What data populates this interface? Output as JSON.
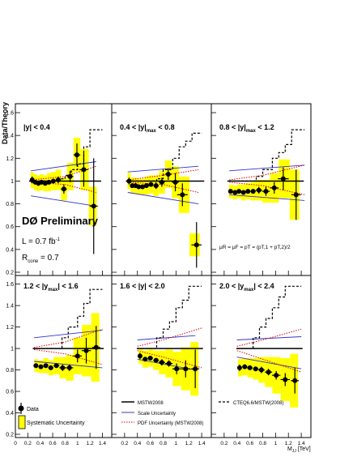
{
  "figure": {
    "ylabel": "Data/Theory",
    "xlabel": "M",
    "xlabel_sub": "JJ",
    "xlabel_unit": " [TeV]",
    "experiment": "DØ Preliminary",
    "lumi_a": "L = 0.7 fb",
    "lumi_b": "-1",
    "rcone_a": "R",
    "rcone_b": "cone",
    "rcone_c": " = 0.7",
    "scale_text": "μR = μF = pT = (pT,1 + pT,2)/2"
  },
  "colors": {
    "syst": "#ffff00",
    "data": "#000000",
    "mstw": "#000000",
    "scale": "#3333cc",
    "pdf": "#dd0000",
    "cteq": "#000000"
  },
  "legend": {
    "data": "Data",
    "syst": "Systematic Uncertainty",
    "mstw": "MSTW2008",
    "scale": "Scale  Uncertainty",
    "pdf": "PDF Uncertainty (MSTW2008)",
    "cteq": "CTEQ6.6/MSTW(2008)"
  },
  "chart_data": {
    "type": "scatter",
    "xlim": [
      0,
      1.55
    ],
    "ylim": [
      0.2,
      1.65
    ],
    "yticks": [
      "0.2",
      "0.4",
      "0.6",
      "0.8",
      "1",
      "1.2",
      "1.4",
      "1.6"
    ],
    "xticks_first": [
      "0",
      "0.2",
      "0.4",
      "0.6",
      "0.8",
      "1",
      "1.2",
      "1.4"
    ],
    "xticks_other": [
      "0.2",
      "0.4",
      "0.6",
      "0.8",
      "1",
      "1.2",
      "1.4"
    ],
    "panels": [
      {
        "label_pre": "|y| < 0.4",
        "label_sub": "",
        "label_post": "",
        "data": [
          {
            "x": 0.27,
            "y": 1.01,
            "err": 0.03,
            "sys": 0.07
          },
          {
            "x": 0.32,
            "y": 0.99,
            "err": 0.02,
            "sys": 0.07
          },
          {
            "x": 0.37,
            "y": 0.98,
            "err": 0.02,
            "sys": 0.07
          },
          {
            "x": 0.42,
            "y": 0.99,
            "err": 0.02,
            "sys": 0.07
          },
          {
            "x": 0.48,
            "y": 0.98,
            "err": 0.02,
            "sys": 0.07
          },
          {
            "x": 0.54,
            "y": 0.99,
            "err": 0.02,
            "sys": 0.08
          },
          {
            "x": 0.61,
            "y": 1.0,
            "err": 0.02,
            "sys": 0.08
          },
          {
            "x": 0.69,
            "y": 1.01,
            "err": 0.03,
            "sys": 0.09
          },
          {
            "x": 0.78,
            "y": 0.93,
            "err": 0.04,
            "sys": 0.1
          },
          {
            "x": 0.88,
            "y": 1.04,
            "err": 0.05,
            "sys": 0.12
          },
          {
            "x": 0.99,
            "y": 1.23,
            "err": 0.1,
            "sys": 0.15
          },
          {
            "x": 1.1,
            "y": 1.1,
            "err": 0.15,
            "sys": 0.18
          },
          {
            "x": 1.26,
            "y": 0.78,
            "err": 0.42,
            "sys": 0.17
          }
        ],
        "cteq": [
          [
            0.25,
            1.0
          ],
          [
            0.7,
            1.02
          ],
          [
            0.8,
            1.05
          ],
          [
            0.9,
            1.1
          ],
          [
            1.0,
            1.15
          ],
          [
            1.1,
            1.3
          ],
          [
            1.2,
            1.45
          ],
          [
            1.4,
            1.45
          ]
        ],
        "scale": {
          "up": [
            [
              0.25,
              1.09
            ],
            [
              1.3,
              1.17
            ]
          ],
          "down": [
            [
              0.25,
              0.87
            ],
            [
              1.3,
              0.78
            ]
          ]
        },
        "pdf": {
          "up": [
            [
              0.25,
              1.01
            ],
            [
              0.8,
              1.04
            ],
            [
              1.3,
              1.13
            ]
          ],
          "down": [
            [
              0.25,
              0.99
            ],
            [
              0.8,
              0.97
            ],
            [
              1.3,
              0.9
            ]
          ]
        }
      },
      {
        "label_pre": "0.4 < |y|",
        "label_sub": "max",
        "label_post": " < 0.8",
        "data": [
          {
            "x": 0.27,
            "y": 1.0,
            "err": 0.03,
            "sys": 0.07
          },
          {
            "x": 0.32,
            "y": 0.96,
            "err": 0.02,
            "sys": 0.07
          },
          {
            "x": 0.37,
            "y": 0.96,
            "err": 0.02,
            "sys": 0.07
          },
          {
            "x": 0.42,
            "y": 0.95,
            "err": 0.02,
            "sys": 0.07
          },
          {
            "x": 0.48,
            "y": 0.95,
            "err": 0.02,
            "sys": 0.07
          },
          {
            "x": 0.54,
            "y": 0.96,
            "err": 0.02,
            "sys": 0.08
          },
          {
            "x": 0.61,
            "y": 0.97,
            "err": 0.02,
            "sys": 0.08
          },
          {
            "x": 0.69,
            "y": 0.96,
            "err": 0.03,
            "sys": 0.09
          },
          {
            "x": 0.78,
            "y": 0.99,
            "err": 0.04,
            "sys": 0.1
          },
          {
            "x": 0.88,
            "y": 1.06,
            "err": 0.05,
            "sys": 0.12
          },
          {
            "x": 0.99,
            "y": 0.99,
            "err": 0.08,
            "sys": 0.14
          },
          {
            "x": 1.1,
            "y": 0.88,
            "err": 0.1,
            "sys": 0.16
          },
          {
            "x": 1.32,
            "y": 0.44,
            "err": 0.2,
            "sys": 0.1
          }
        ],
        "cteq": [
          [
            0.25,
            1.0
          ],
          [
            0.7,
            1.02
          ],
          [
            0.8,
            1.1
          ],
          [
            0.95,
            1.2
          ],
          [
            1.05,
            1.3
          ],
          [
            1.15,
            1.35
          ],
          [
            1.25,
            1.42
          ],
          [
            1.4,
            1.42
          ]
        ],
        "scale": {
          "up": [
            [
              0.25,
              1.08
            ],
            [
              1.35,
              1.13
            ]
          ],
          "down": [
            [
              0.25,
              0.9
            ],
            [
              1.35,
              0.8
            ]
          ]
        },
        "pdf": {
          "up": [
            [
              0.25,
              1.01
            ],
            [
              0.8,
              1.05
            ],
            [
              1.35,
              1.1
            ]
          ],
          "down": [
            [
              0.25,
              0.99
            ],
            [
              0.8,
              0.97
            ],
            [
              1.35,
              0.9
            ]
          ]
        }
      },
      {
        "label_pre": "0.8 < |y|",
        "label_sub": "max",
        "label_post": " < 1.2",
        "data": [
          {
            "x": 0.3,
            "y": 0.91,
            "err": 0.02,
            "sys": 0.06
          },
          {
            "x": 0.37,
            "y": 0.9,
            "err": 0.02,
            "sys": 0.06
          },
          {
            "x": 0.43,
            "y": 0.91,
            "err": 0.02,
            "sys": 0.06
          },
          {
            "x": 0.5,
            "y": 0.9,
            "err": 0.02,
            "sys": 0.07
          },
          {
            "x": 0.57,
            "y": 0.91,
            "err": 0.02,
            "sys": 0.07
          },
          {
            "x": 0.65,
            "y": 0.91,
            "err": 0.02,
            "sys": 0.08
          },
          {
            "x": 0.74,
            "y": 0.92,
            "err": 0.03,
            "sys": 0.09
          },
          {
            "x": 0.85,
            "y": 0.91,
            "err": 0.04,
            "sys": 0.1
          },
          {
            "x": 0.98,
            "y": 0.94,
            "err": 0.05,
            "sys": 0.13
          },
          {
            "x": 1.12,
            "y": 1.02,
            "err": 0.1,
            "sys": 0.17
          },
          {
            "x": 1.32,
            "y": 0.88,
            "err": 0.22,
            "sys": 0.22
          }
        ],
        "cteq": [
          [
            0.28,
            1.0
          ],
          [
            0.7,
            1.04
          ],
          [
            0.8,
            1.1
          ],
          [
            0.95,
            1.2
          ],
          [
            1.05,
            1.25
          ],
          [
            1.15,
            1.32
          ],
          [
            1.25,
            1.45
          ],
          [
            1.45,
            1.45
          ]
        ],
        "scale": {
          "up": [
            [
              0.28,
              1.09
            ],
            [
              1.45,
              1.14
            ]
          ],
          "down": [
            [
              0.28,
              0.88
            ],
            [
              1.45,
              0.83
            ]
          ]
        },
        "pdf": {
          "up": [
            [
              0.28,
              1.01
            ],
            [
              0.8,
              1.05
            ],
            [
              1.45,
              1.14
            ]
          ],
          "down": [
            [
              0.28,
              0.99
            ],
            [
              0.8,
              0.96
            ],
            [
              1.45,
              0.88
            ]
          ]
        }
      },
      {
        "label_pre": "1.2 < |y",
        "label_sub": "max",
        "label_post": "| < 1.6",
        "data": [
          {
            "x": 0.33,
            "y": 0.84,
            "err": 0.02,
            "sys": 0.06
          },
          {
            "x": 0.41,
            "y": 0.83,
            "err": 0.02,
            "sys": 0.06
          },
          {
            "x": 0.49,
            "y": 0.84,
            "err": 0.02,
            "sys": 0.07
          },
          {
            "x": 0.57,
            "y": 0.82,
            "err": 0.02,
            "sys": 0.07
          },
          {
            "x": 0.66,
            "y": 0.84,
            "err": 0.02,
            "sys": 0.08
          },
          {
            "x": 0.76,
            "y": 0.82,
            "err": 0.03,
            "sys": 0.1
          },
          {
            "x": 0.87,
            "y": 0.82,
            "err": 0.03,
            "sys": 0.12
          },
          {
            "x": 1.0,
            "y": 0.93,
            "err": 0.06,
            "sys": 0.17
          },
          {
            "x": 1.14,
            "y": 0.98,
            "err": 0.12,
            "sys": 0.24
          },
          {
            "x": 1.3,
            "y": 1.01,
            "err": 0.2,
            "sys": 0.32
          }
        ],
        "cteq": [
          [
            0.3,
            1.0
          ],
          [
            0.75,
            1.1
          ],
          [
            0.85,
            1.2
          ],
          [
            1.0,
            1.3
          ],
          [
            1.1,
            1.42
          ],
          [
            1.2,
            1.55
          ],
          [
            1.4,
            1.55
          ]
        ],
        "scale": {
          "up": [
            [
              0.3,
              1.1
            ],
            [
              1.4,
              1.17
            ]
          ],
          "down": [
            [
              0.3,
              0.88
            ],
            [
              1.4,
              0.82
            ]
          ]
        },
        "pdf": {
          "up": [
            [
              0.3,
              1.01
            ],
            [
              0.8,
              1.06
            ],
            [
              1.4,
              1.18
            ]
          ],
          "down": [
            [
              0.3,
              0.99
            ],
            [
              0.8,
              0.95
            ],
            [
              1.4,
              0.85
            ]
          ]
        }
      },
      {
        "label_pre": "1.6 < |y|",
        "label_sub": "",
        "label_post": " < 2.0",
        "data": [
          {
            "x": 0.44,
            "y": 0.93,
            "err": 0.03,
            "sys": 0.07
          },
          {
            "x": 0.52,
            "y": 0.9,
            "err": 0.02,
            "sys": 0.08
          },
          {
            "x": 0.6,
            "y": 0.91,
            "err": 0.02,
            "sys": 0.08
          },
          {
            "x": 0.69,
            "y": 0.89,
            "err": 0.02,
            "sys": 0.09
          },
          {
            "x": 0.78,
            "y": 0.87,
            "err": 0.03,
            "sys": 0.11
          },
          {
            "x": 0.89,
            "y": 0.86,
            "err": 0.03,
            "sys": 0.13
          },
          {
            "x": 1.01,
            "y": 0.81,
            "err": 0.05,
            "sys": 0.16
          },
          {
            "x": 1.15,
            "y": 0.81,
            "err": 0.08,
            "sys": 0.2
          },
          {
            "x": 1.3,
            "y": 0.81,
            "err": 0.18,
            "sys": 0.25
          }
        ],
        "cteq": [
          [
            0.4,
            1.0
          ],
          [
            0.7,
            1.1
          ],
          [
            0.8,
            1.18
          ],
          [
            0.9,
            1.25
          ],
          [
            1.0,
            1.38
          ],
          [
            1.1,
            1.45
          ],
          [
            1.2,
            1.58
          ],
          [
            1.4,
            1.58
          ]
        ],
        "scale": {
          "up": [
            [
              0.4,
              1.08
            ],
            [
              1.3,
              1.12
            ]
          ],
          "down": [
            [
              0.4,
              0.9
            ],
            [
              1.3,
              0.8
            ]
          ]
        },
        "pdf": {
          "up": [
            [
              0.4,
              1.02
            ],
            [
              0.8,
              1.08
            ],
            [
              1.4,
              1.19
            ]
          ],
          "down": [
            [
              0.4,
              0.98
            ],
            [
              0.8,
              0.92
            ],
            [
              1.4,
              0.82
            ]
          ]
        }
      },
      {
        "label_pre": "2.0 < |y",
        "label_sub": "max",
        "label_post": "| < 2.4",
        "data": [
          {
            "x": 0.44,
            "y": 0.82,
            "err": 0.03,
            "sys": 0.08
          },
          {
            "x": 0.52,
            "y": 0.83,
            "err": 0.02,
            "sys": 0.08
          },
          {
            "x": 0.6,
            "y": 0.82,
            "err": 0.02,
            "sys": 0.09
          },
          {
            "x": 0.69,
            "y": 0.81,
            "err": 0.02,
            "sys": 0.1
          },
          {
            "x": 0.78,
            "y": 0.8,
            "err": 0.03,
            "sys": 0.12
          },
          {
            "x": 0.89,
            "y": 0.78,
            "err": 0.03,
            "sys": 0.14
          },
          {
            "x": 1.01,
            "y": 0.75,
            "err": 0.04,
            "sys": 0.17
          },
          {
            "x": 1.15,
            "y": 0.71,
            "err": 0.06,
            "sys": 0.2
          },
          {
            "x": 1.3,
            "y": 0.7,
            "err": 0.12,
            "sys": 0.25
          }
        ],
        "cteq": [
          [
            0.4,
            1.0
          ],
          [
            0.65,
            1.1
          ],
          [
            0.75,
            1.2
          ],
          [
            0.85,
            1.28
          ],
          [
            0.95,
            1.38
          ],
          [
            1.05,
            1.48
          ],
          [
            1.15,
            1.58
          ],
          [
            1.4,
            1.58
          ]
        ],
        "scale": {
          "up": [
            [
              0.4,
              1.08
            ],
            [
              1.4,
              1.11
            ]
          ],
          "down": [
            [
              0.4,
              0.92
            ],
            [
              1.4,
              0.81
            ]
          ]
        },
        "pdf": {
          "up": [
            [
              0.4,
              1.02
            ],
            [
              0.8,
              1.08
            ],
            [
              1.4,
              1.18
            ]
          ],
          "down": [
            [
              0.4,
              0.98
            ],
            [
              0.8,
              0.9
            ],
            [
              1.4,
              0.78
            ]
          ]
        }
      }
    ]
  }
}
